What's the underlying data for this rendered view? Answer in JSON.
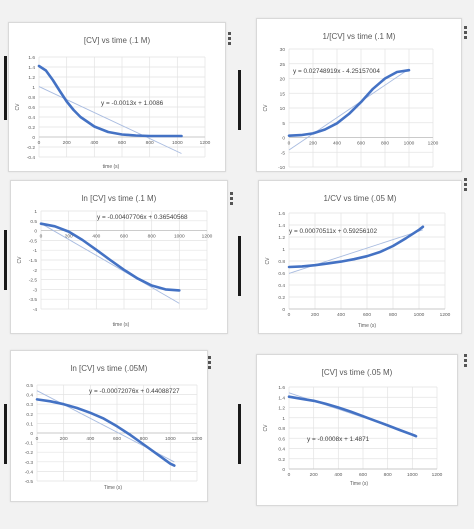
{
  "line_color": "#4472c4",
  "trend_color": "#a9bce0",
  "chart_data": [
    {
      "type": "line",
      "title": "[CV] vs time (.1 M)",
      "xlabel": "time (s)",
      "ylabel": "CV",
      "xlim": [
        0,
        1200
      ],
      "ylim": [
        -0.4,
        1.6
      ],
      "xticks": [
        0,
        200,
        400,
        600,
        800,
        1000,
        1200
      ],
      "yticks": [
        1.6,
        1.4,
        1.2,
        1,
        0.8,
        0.6,
        0.4,
        0.2,
        0,
        -0.2,
        -0.4
      ],
      "xtick_labels": [
        "0",
        "200",
        "400",
        "600",
        "800",
        "1000",
        "1200"
      ],
      "ytick_labels": [
        "1.6",
        "1.4",
        "1.2",
        "1",
        "0.8",
        "0.6",
        "0.4",
        "0.2",
        "0",
        "-0.2",
        "-0.4"
      ],
      "equation": "y = -0.0013x + 1.0086",
      "trendline": {
        "slope": -0.0013,
        "intercept": 1.0086
      },
      "series": [
        {
          "x": [
            0,
            50,
            100,
            150,
            200,
            250,
            300,
            400,
            500,
            600,
            700,
            800,
            900,
            1000,
            1030
          ],
          "y": [
            1.42,
            1.33,
            1.14,
            0.92,
            0.71,
            0.54,
            0.4,
            0.21,
            0.1,
            0.05,
            0.03,
            0.02,
            0.02,
            0.02,
            0.02
          ]
        }
      ],
      "grid": true
    },
    {
      "type": "line",
      "title": "1/[CV] vs time (.1 M)",
      "xlabel": "",
      "ylabel": "CV",
      "xlim": [
        0,
        1200
      ],
      "ylim": [
        -10,
        30
      ],
      "xticks": [
        0,
        200,
        400,
        600,
        800,
        1000,
        1200
      ],
      "yticks": [
        30,
        25,
        20,
        15,
        10,
        5,
        0,
        -5,
        -10
      ],
      "xtick_labels": [
        "0",
        "200",
        "400",
        "600",
        "800",
        "1000",
        "1200"
      ],
      "ytick_labels": [
        "30",
        "25",
        "20",
        "15",
        "10",
        "5",
        "0",
        "-5",
        "-10"
      ],
      "equation": "y = 0.02748919x - 4.25157004",
      "trendline": {
        "slope": 0.02748919,
        "intercept": -4.25157004
      },
      "series": [
        {
          "x": [
            0,
            100,
            200,
            300,
            400,
            500,
            600,
            700,
            800,
            900,
            1000
          ],
          "y": [
            0.6,
            0.8,
            1.4,
            2.7,
            4.8,
            8.0,
            12.0,
            16.5,
            20.0,
            22.2,
            22.8
          ]
        }
      ],
      "grid": true
    },
    {
      "type": "line",
      "title": "ln [CV] vs time (.1 M)",
      "xlabel": "time (s)",
      "ylabel": "CV",
      "xlim": [
        0,
        1200
      ],
      "ylim": [
        -4,
        1
      ],
      "xticks": [
        0,
        200,
        400,
        600,
        800,
        1000,
        1200
      ],
      "yticks": [
        1,
        0.5,
        0,
        -0.5,
        -1,
        -1.5,
        -2,
        -2.5,
        -3,
        -3.5,
        -4
      ],
      "xtick_labels": [
        "0",
        "200",
        "400",
        "600",
        "800",
        "1000",
        "1200"
      ],
      "ytick_labels": [
        "1",
        "0.5",
        "0",
        "-0.5",
        "-1",
        "-1.5",
        "-2",
        "-2.5",
        "-3",
        "-3.5",
        "-4"
      ],
      "equation": "y = -0.00407706x + 0.36540568",
      "trendline": {
        "slope": -0.00407706,
        "intercept": 0.36540568
      },
      "series": [
        {
          "x": [
            0,
            100,
            200,
            300,
            400,
            500,
            600,
            700,
            800,
            900,
            1000
          ],
          "y": [
            0.35,
            0.22,
            -0.05,
            -0.48,
            -0.98,
            -1.5,
            -2.0,
            -2.45,
            -2.8,
            -3.0,
            -3.05
          ]
        }
      ],
      "grid": true
    },
    {
      "type": "line",
      "title": "1/CV vs time (.05 M)",
      "xlabel": "Time (s)",
      "ylabel": "CV",
      "xlim": [
        0,
        1200
      ],
      "ylim": [
        0,
        1.6
      ],
      "xticks": [
        0,
        200,
        400,
        600,
        800,
        1000,
        1200
      ],
      "yticks": [
        1.6,
        1.4,
        1.2,
        1,
        0.8,
        0.6,
        0.4,
        0.2,
        0
      ],
      "xtick_labels": [
        "0",
        "200",
        "400",
        "600",
        "800",
        "1000",
        "1200"
      ],
      "ytick_labels": [
        "1.6",
        "1.4",
        "1.2",
        "1",
        "0.8",
        "0.6",
        "0.4",
        "0.2",
        "0"
      ],
      "equation": "y = 0.00070511x + 0.59256102",
      "trendline": {
        "slope": 0.00070511,
        "intercept": 0.59256102
      },
      "series": [
        {
          "x": [
            0,
            100,
            200,
            300,
            400,
            500,
            600,
            700,
            800,
            900,
            1000,
            1030
          ],
          "y": [
            0.7,
            0.71,
            0.73,
            0.76,
            0.79,
            0.83,
            0.88,
            0.95,
            1.05,
            1.18,
            1.32,
            1.37
          ]
        }
      ],
      "grid": true
    },
    {
      "type": "line",
      "title": "ln [CV] vs time (.05M)",
      "xlabel": "Time (s)",
      "ylabel": "",
      "xlim": [
        0,
        1200
      ],
      "ylim": [
        -0.5,
        0.5
      ],
      "xticks": [
        0,
        200,
        400,
        600,
        800,
        1000,
        1200
      ],
      "yticks": [
        0.5,
        0.4,
        0.3,
        0.2,
        0.1,
        0,
        -0.1,
        -0.2,
        -0.3,
        -0.4,
        -0.5
      ],
      "xtick_labels": [
        "0",
        "200",
        "400",
        "600",
        "800",
        "1000",
        "1200"
      ],
      "ytick_labels": [
        "0.5",
        "0.4",
        "0.3",
        "0.2",
        "0.1",
        "0",
        "-0.1",
        "-0.2",
        "-0.3",
        "-0.4",
        "-0.5"
      ],
      "equation": "y = -0.00072076x + 0.44088727",
      "trendline": {
        "slope": -0.00072076,
        "intercept": 0.44088727
      },
      "series": [
        {
          "x": [
            0,
            100,
            200,
            300,
            400,
            500,
            600,
            700,
            800,
            900,
            1000,
            1030
          ],
          "y": [
            0.35,
            0.33,
            0.3,
            0.26,
            0.21,
            0.15,
            0.07,
            -0.02,
            -0.12,
            -0.22,
            -0.32,
            -0.34
          ]
        }
      ],
      "grid": true
    },
    {
      "type": "line",
      "title": "[CV] vs time (.05 M)",
      "xlabel": "Time (s)",
      "ylabel": "CV",
      "xlim": [
        0,
        1200
      ],
      "ylim": [
        0,
        1.6
      ],
      "xticks": [
        0,
        200,
        400,
        600,
        800,
        1000,
        1200
      ],
      "yticks": [
        1.6,
        1.4,
        1.2,
        1,
        0.8,
        0.6,
        0.4,
        0.2,
        0
      ],
      "xtick_labels": [
        "0",
        "200",
        "400",
        "600",
        "800",
        "1000",
        "1200"
      ],
      "ytick_labels": [
        "1.6",
        "1.4",
        "1.2",
        "1",
        "0.8",
        "0.6",
        "0.4",
        "0.2",
        "0"
      ],
      "equation": "y = -0.0008x + 1.4871",
      "trendline": {
        "slope": -0.0008,
        "intercept": 1.4871
      },
      "series": [
        {
          "x": [
            0,
            100,
            200,
            300,
            400,
            500,
            600,
            700,
            800,
            900,
            1000,
            1030
          ],
          "y": [
            1.41,
            1.37,
            1.33,
            1.27,
            1.2,
            1.12,
            1.03,
            0.94,
            0.85,
            0.76,
            0.67,
            0.64
          ]
        }
      ],
      "grid": true
    }
  ]
}
